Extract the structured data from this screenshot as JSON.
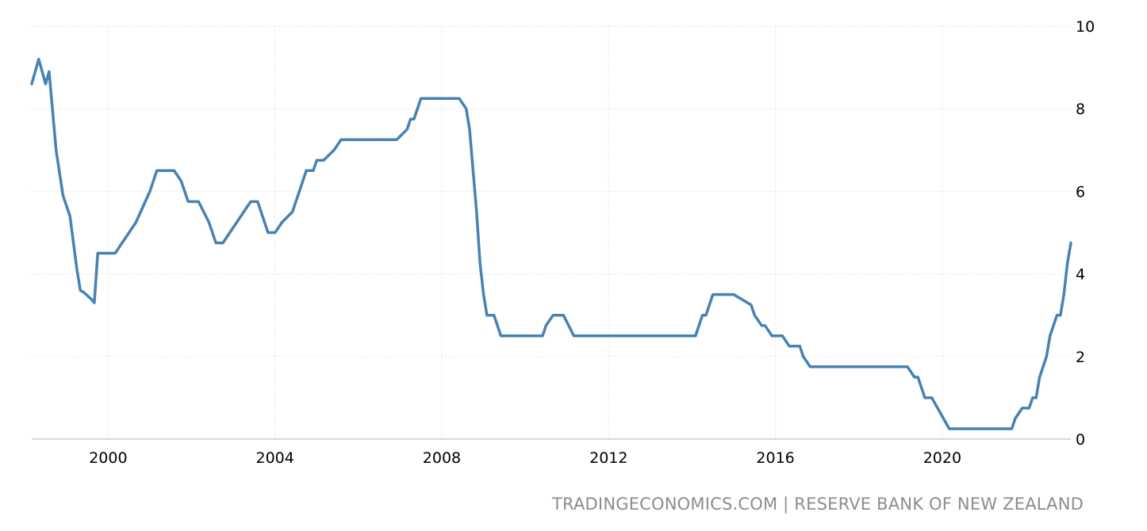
{
  "chart_data": {
    "type": "line",
    "title": "",
    "xlabel": "",
    "ylabel": "",
    "ylim": [
      0,
      10
    ],
    "xlim": [
      "1998-03",
      "2023-02"
    ],
    "y_ticks": [
      "0",
      "2",
      "4",
      "6",
      "8",
      "10"
    ],
    "x_ticks": [
      "2000",
      "2004",
      "2008",
      "2012",
      "2016",
      "2020"
    ],
    "grid": true,
    "legend": "none",
    "line_color": "#4682b4",
    "series": [
      {
        "x": [
          "1998-03",
          "1998-05",
          "1998-07",
          "1998-08",
          "1998-10",
          "1998-12",
          "1999-02",
          "1999-04",
          "1999-05",
          "1999-06",
          "1999-08",
          "1999-09",
          "1999-10",
          "1999-11",
          "1999-12",
          "2000-01",
          "2000-03",
          "2000-05",
          "2000-07",
          "2000-09",
          "2001-01",
          "2001-03",
          "2001-05",
          "2001-07",
          "2001-08",
          "2001-10",
          "2001-11",
          "2001-12",
          "2002-03",
          "2002-06",
          "2002-08",
          "2002-09",
          "2002-10",
          "2002-12",
          "2003-06",
          "2003-08",
          "2003-09",
          "2003-10",
          "2003-11",
          "2004-01",
          "2004-03",
          "2004-06",
          "2004-07",
          "2004-08",
          "2004-09",
          "2004-10",
          "2004-11",
          "2004-12",
          "2005-01",
          "2005-03",
          "2005-06",
          "2005-08",
          "2005-10",
          "2005-12",
          "2006-01",
          "2006-03",
          "2006-06",
          "2006-09",
          "2006-12",
          "2007-03",
          "2007-04",
          "2007-05",
          "2007-06",
          "2007-07",
          "2007-08",
          "2007-09",
          "2007-12",
          "2008-03",
          "2008-06",
          "2008-08",
          "2008-09",
          "2008-10",
          "2008-11",
          "2008-12",
          "2009-01",
          "2009-02",
          "2009-03",
          "2009-04",
          "2009-05",
          "2009-06",
          "2009-12",
          "2010-03",
          "2010-06",
          "2010-07",
          "2010-09",
          "2010-12",
          "2011-03",
          "2011-06",
          "2011-09",
          "2012-03",
          "2013-03",
          "2014-01",
          "2014-02",
          "2014-03",
          "2014-04",
          "2014-05",
          "2014-06",
          "2014-07",
          "2014-08",
          "2014-09",
          "2015-01",
          "2015-06",
          "2015-07",
          "2015-09",
          "2015-10",
          "2015-12",
          "2016-01",
          "2016-03",
          "2016-05",
          "2016-06",
          "2016-08",
          "2016-09",
          "2016-11",
          "2017-03",
          "2018-06",
          "2019-03",
          "2019-05",
          "2019-06",
          "2019-08",
          "2019-10",
          "2020-03",
          "2020-06",
          "2021-06",
          "2021-09",
          "2021-10",
          "2021-12",
          "2022-01",
          "2022-02",
          "2022-03",
          "2022-04",
          "2022-05",
          "2022-07",
          "2022-08",
          "2022-10",
          "2022-11",
          "2022-12",
          "2023-01",
          "2023-02"
        ],
        "y": [
          8.6,
          9.2,
          8.6,
          8.9,
          7.0,
          5.9,
          5.4,
          4.1,
          3.6,
          3.55,
          3.4,
          3.3,
          4.5,
          4.5,
          4.5,
          4.5,
          4.5,
          4.75,
          5.0,
          5.25,
          6.0,
          6.5,
          6.5,
          6.5,
          6.5,
          6.25,
          6.0,
          5.75,
          5.75,
          5.25,
          4.75,
          4.75,
          4.75,
          5.0,
          5.75,
          5.75,
          5.5,
          5.25,
          5.0,
          5.0,
          5.25,
          5.5,
          5.75,
          6.0,
          6.25,
          6.5,
          6.5,
          6.5,
          6.75,
          6.75,
          7.0,
          7.25,
          7.25,
          7.25,
          7.25,
          7.25,
          7.25,
          7.25,
          7.25,
          7.5,
          7.75,
          7.75,
          8.0,
          8.25,
          8.25,
          8.25,
          8.25,
          8.25,
          8.25,
          8.0,
          7.5,
          6.5,
          5.5,
          4.25,
          3.5,
          3.0,
          3.0,
          3.0,
          2.75,
          2.5,
          2.5,
          2.5,
          2.5,
          2.75,
          3.0,
          3.0,
          2.5,
          2.5,
          2.5,
          2.5,
          2.5,
          2.5,
          2.5,
          2.75,
          3.0,
          3.0,
          3.25,
          3.5,
          3.5,
          3.5,
          3.5,
          3.25,
          3.0,
          2.75,
          2.75,
          2.5,
          2.5,
          2.5,
          2.25,
          2.25,
          2.25,
          2.0,
          1.75,
          1.75,
          1.75,
          1.75,
          1.5,
          1.5,
          1.0,
          1.0,
          0.25,
          0.25,
          0.25,
          0.25,
          0.5,
          0.75,
          0.75,
          0.75,
          1.0,
          1.0,
          1.5,
          2.0,
          2.5,
          3.0,
          3.0,
          3.5,
          4.25,
          4.75
        ]
      }
    ]
  },
  "source_label": "TRADINGECONOMICS.COM | RESERVE BANK OF NEW ZEALAND"
}
